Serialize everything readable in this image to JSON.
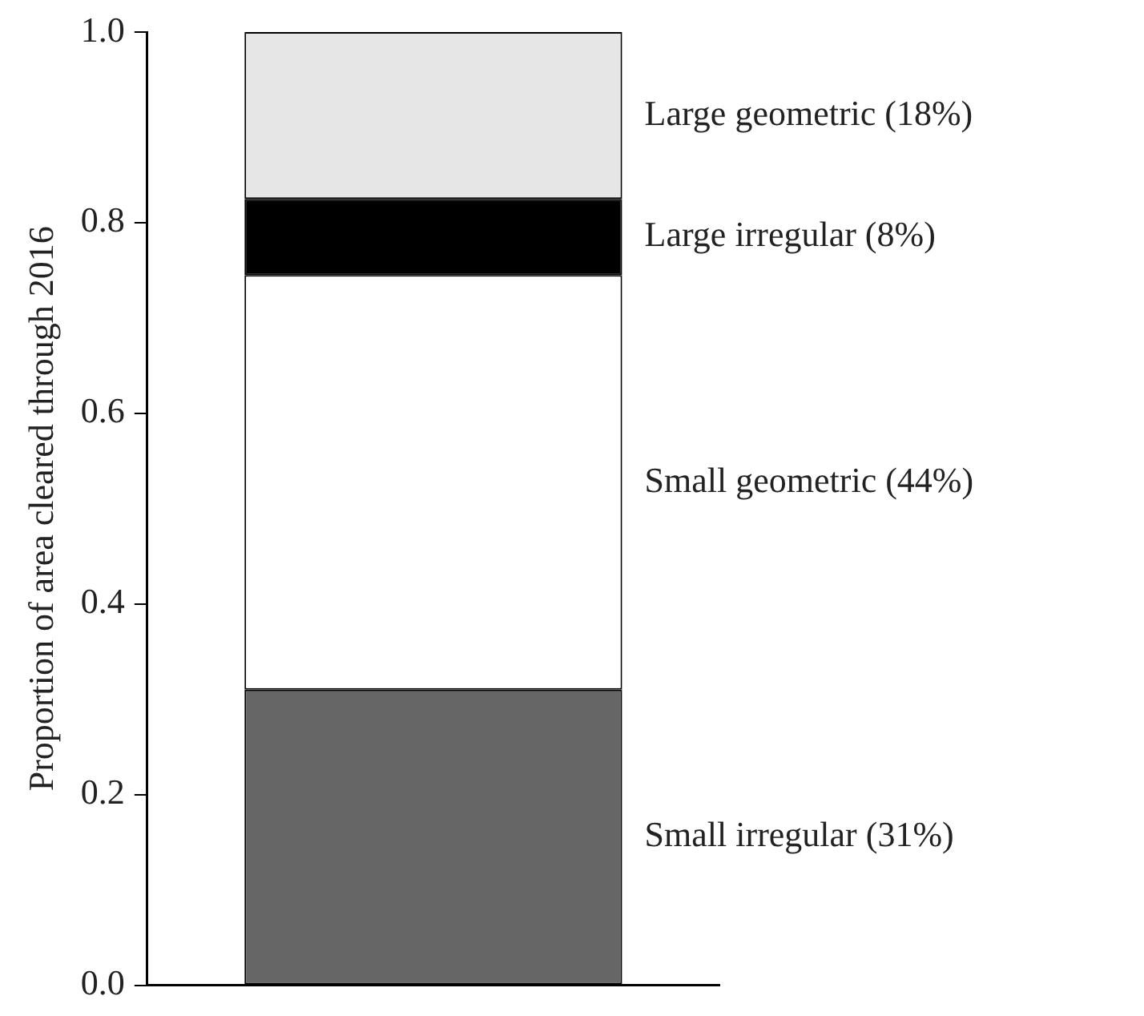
{
  "chart_data": {
    "type": "bar",
    "stacked": true,
    "ylabel": "Proportion of area cleared through 2016",
    "categories": [
      null
    ],
    "series": [
      {
        "name": "Small irregular (31%)",
        "color": "#666666",
        "values": [
          0.31
        ]
      },
      {
        "name": "Small geometric (44%)",
        "color": "#ffffff",
        "values": [
          0.435
        ]
      },
      {
        "name": "Large irregular (8%)",
        "color": "#000000",
        "values": [
          0.08
        ]
      },
      {
        "name": "Large geometric (18%)",
        "color": "#e6e6e6",
        "values": [
          0.175
        ]
      }
    ],
    "ylim": [
      0,
      1
    ],
    "yticks": [
      {
        "value": 0,
        "label": "0.0"
      },
      {
        "value": 0.2,
        "label": "0.2"
      },
      {
        "value": 0.4,
        "label": "0.4"
      },
      {
        "value": 0.6,
        "label": "0.6"
      },
      {
        "value": 0.8,
        "label": "0.8"
      },
      {
        "value": 1,
        "label": "1.0"
      }
    ],
    "grid": false,
    "legend": false,
    "tick_labels": "y"
  }
}
